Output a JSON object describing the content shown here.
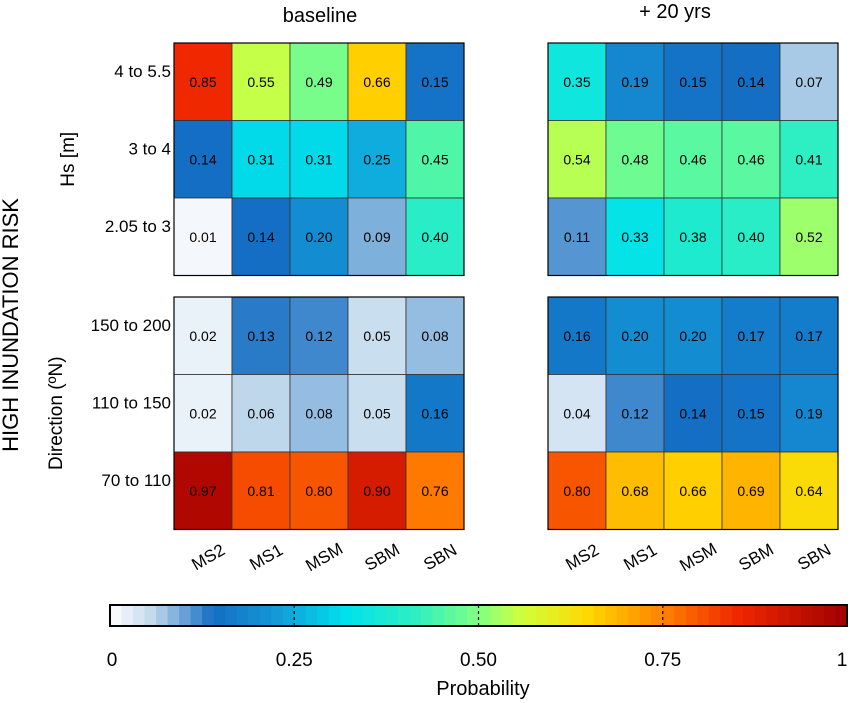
{
  "figure": {
    "side_label": "HIGH INUNDATION RISK",
    "panel_titles": [
      "baseline",
      "+ 20 yrs"
    ]
  },
  "chart_data": {
    "type": "heatmap",
    "columns": [
      "MS2",
      "MS1",
      "MSM",
      "SBM",
      "SBN"
    ],
    "groups": [
      {
        "ylabel": "Hs [m]",
        "rows": [
          "4 to 5.5",
          "3 to 4",
          "2.05 to 3"
        ],
        "baseline": [
          [
            0.85,
            0.55,
            0.49,
            0.66,
            0.15
          ],
          [
            0.14,
            0.31,
            0.31,
            0.25,
            0.45
          ],
          [
            0.01,
            0.14,
            0.2,
            0.09,
            0.4
          ]
        ],
        "plus20": [
          [
            0.35,
            0.19,
            0.15,
            0.14,
            0.07
          ],
          [
            0.54,
            0.48,
            0.46,
            0.46,
            0.41
          ],
          [
            0.11,
            0.33,
            0.38,
            0.4,
            0.52
          ]
        ]
      },
      {
        "ylabel": "Direction (ºN)",
        "rows": [
          "150 to 200",
          "110 to 150",
          "70 to 110"
        ],
        "baseline": [
          [
            0.02,
            0.13,
            0.12,
            0.05,
            0.08
          ],
          [
            0.02,
            0.06,
            0.08,
            0.05,
            0.16
          ],
          [
            0.97,
            0.81,
            0.8,
            0.9,
            0.76
          ]
        ],
        "plus20": [
          [
            0.16,
            0.2,
            0.2,
            0.17,
            0.17
          ],
          [
            0.04,
            0.12,
            0.14,
            0.15,
            0.19
          ],
          [
            0.8,
            0.68,
            0.66,
            0.69,
            0.64
          ]
        ]
      }
    ],
    "colorbar": {
      "label": "Probability",
      "range": [
        0,
        1
      ],
      "ticks": [
        0,
        0.25,
        0.5,
        0.75,
        1
      ],
      "tick_labels": [
        "0",
        "0.25",
        "0.50",
        "0.75",
        "1"
      ]
    }
  }
}
